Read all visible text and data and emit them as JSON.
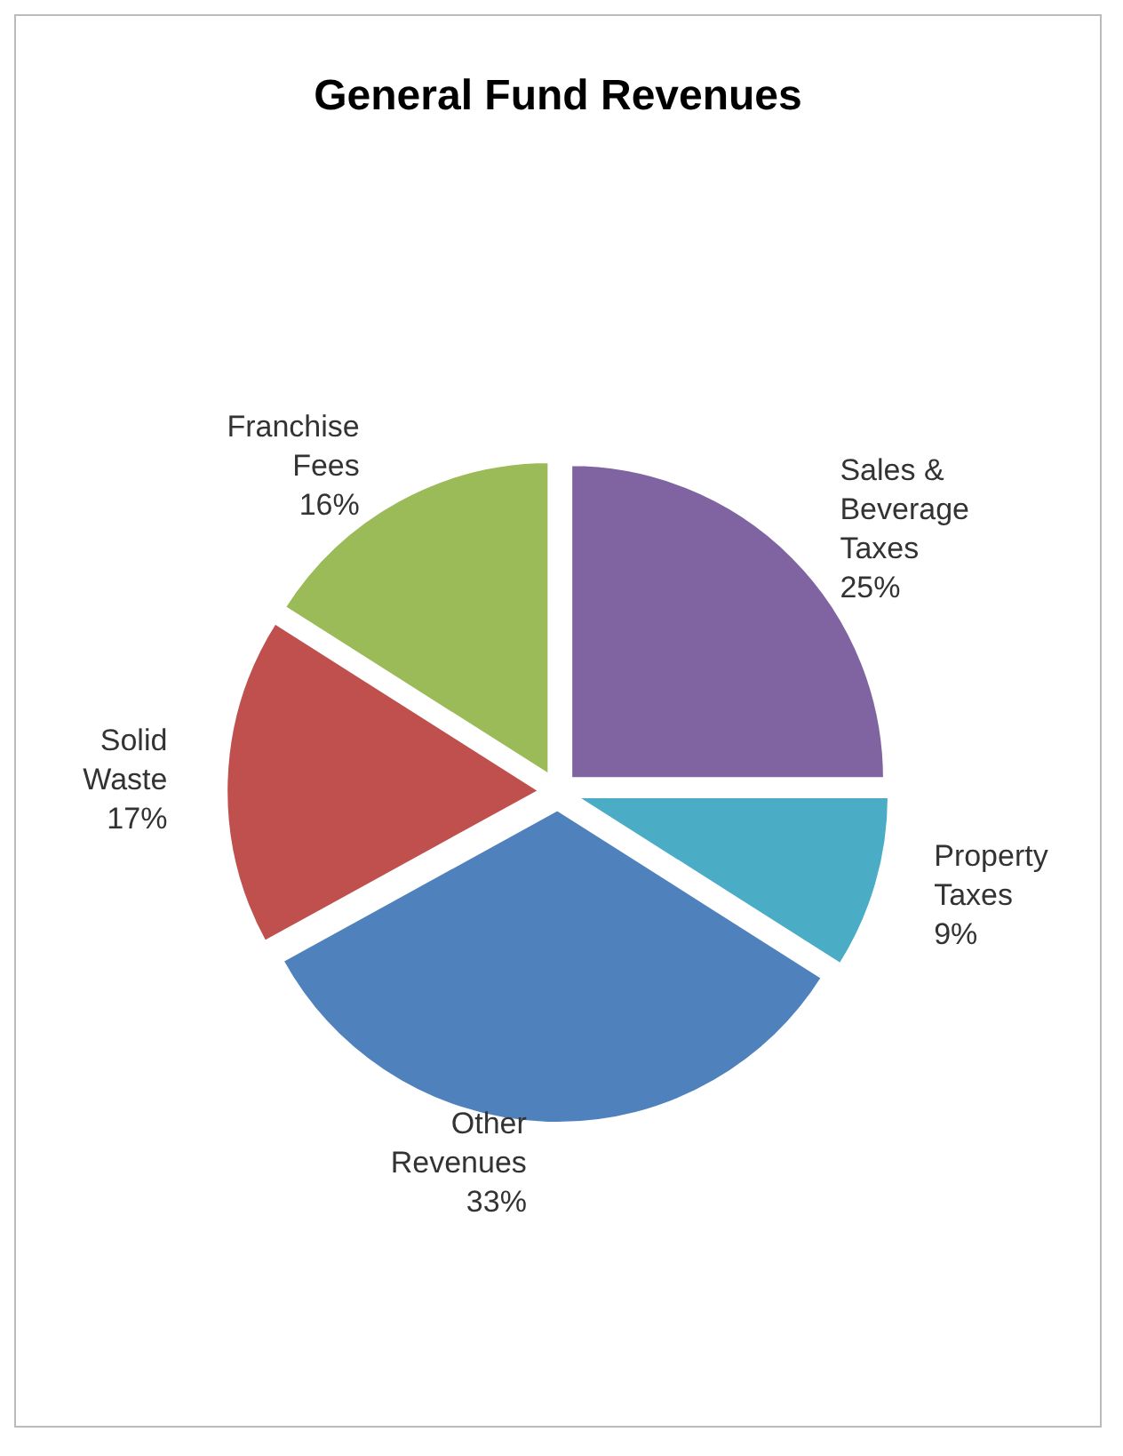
{
  "chart_data": {
    "type": "pie",
    "title": "General Fund Revenues",
    "categories": [
      "Sales & Beverage Taxes",
      "Property Taxes",
      "Other Revenues",
      "Solid Waste",
      "Franchise Fees"
    ],
    "values": [
      25,
      9,
      33,
      17,
      16
    ],
    "colors": [
      "#8064a2",
      "#4bacc6",
      "#4f81bd",
      "#c0504d",
      "#9bbb59"
    ],
    "value_labels": [
      "25%",
      "9%",
      "33%",
      "17%",
      "16%"
    ],
    "legend": false
  }
}
